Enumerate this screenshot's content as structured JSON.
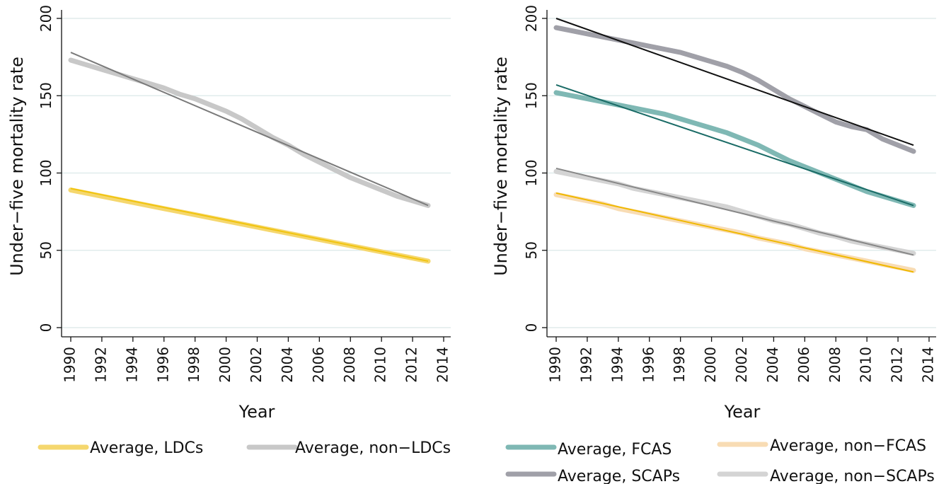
{
  "chart_data": [
    {
      "type": "line",
      "xlabel": "Year",
      "ylabel": "Under−five mortality rate",
      "xlim": [
        1990,
        2014
      ],
      "ylim": [
        0,
        200
      ],
      "xticks": [
        "1990",
        "1992",
        "1994",
        "1996",
        "1998",
        "2000",
        "2002",
        "2004",
        "2006",
        "2008",
        "2010",
        "2012",
        "2014"
      ],
      "yticks": [
        "0",
        "50",
        "100",
        "150",
        "200"
      ],
      "grid": "horizontal",
      "legend_position": "bottom",
      "x": [
        1990,
        1991,
        1992,
        1993,
        1994,
        1995,
        1996,
        1997,
        1998,
        1999,
        2000,
        2001,
        2002,
        2003,
        2004,
        2005,
        2006,
        2007,
        2008,
        2009,
        2010,
        2011,
        2012,
        2013
      ],
      "series": [
        {
          "name": "Average, LDCs",
          "color": "#f5d76e",
          "values": [
            89,
            87,
            85,
            83,
            81,
            79,
            77,
            75,
            73,
            71,
            69,
            67,
            65,
            63,
            61,
            59,
            57,
            55,
            53,
            51,
            49,
            47,
            45,
            43
          ]
        },
        {
          "name": "Average, non−LDCs",
          "color": "#c8c8c8",
          "values": [
            173,
            170,
            167,
            164,
            161,
            158,
            155,
            151,
            148,
            144,
            140,
            135,
            129,
            123,
            118,
            112,
            107,
            102,
            97,
            93,
            89,
            85,
            82,
            79
          ]
        }
      ],
      "fits": [
        {
          "color": "#f1c40f",
          "start": [
            1990,
            90
          ],
          "end": [
            2013,
            43
          ]
        },
        {
          "color": "#7a7a7a",
          "start": [
            1990,
            178
          ],
          "end": [
            2013,
            79
          ]
        }
      ]
    },
    {
      "type": "line",
      "xlabel": "Year",
      "ylabel": "Under−five mortality rate",
      "xlim": [
        1990,
        2014
      ],
      "ylim": [
        0,
        200
      ],
      "xticks": [
        "1990",
        "1992",
        "1994",
        "1996",
        "1998",
        "2000",
        "2002",
        "2004",
        "2006",
        "2008",
        "2010",
        "2012",
        "2014"
      ],
      "yticks": [
        "0",
        "50",
        "100",
        "150",
        "200"
      ],
      "grid": "horizontal",
      "legend_position": "bottom",
      "x": [
        1990,
        1991,
        1992,
        1993,
        1994,
        1995,
        1996,
        1997,
        1998,
        1999,
        2000,
        2001,
        2002,
        2003,
        2004,
        2005,
        2006,
        2007,
        2008,
        2009,
        2010,
        2011,
        2012,
        2013
      ],
      "series": [
        {
          "name": "Average, FCAS",
          "color": "#7fb8b4",
          "values": [
            152,
            150,
            148,
            146,
            144,
            142,
            140,
            138,
            135,
            132,
            129,
            126,
            122,
            118,
            113,
            108,
            104,
            100,
            96,
            92,
            88,
            85,
            82,
            79
          ]
        },
        {
          "name": "Average, non−FCAS",
          "color": "#f8dcb4",
          "values": [
            86,
            84,
            82,
            80,
            77,
            75,
            73,
            71,
            69,
            67,
            65,
            63,
            61,
            58,
            56,
            54,
            51,
            49,
            47,
            45,
            43,
            41,
            39,
            37
          ]
        },
        {
          "name": "Average, SCAPs",
          "color": "#a0a0a8",
          "values": [
            194,
            192,
            190,
            188,
            186,
            184,
            182,
            180,
            178,
            175,
            172,
            169,
            165,
            160,
            154,
            148,
            143,
            138,
            133,
            130,
            128,
            122,
            118,
            114
          ]
        },
        {
          "name": "Average, non−SCAPs",
          "color": "#d4d4d4",
          "values": [
            101,
            99,
            97,
            95,
            93,
            90,
            88,
            86,
            84,
            82,
            80,
            78,
            75,
            72,
            69,
            67,
            64,
            61,
            59,
            56,
            54,
            52,
            50,
            48
          ]
        }
      ],
      "fits": [
        {
          "color": "#1a6b66",
          "start": [
            1990,
            157
          ],
          "end": [
            2013,
            79
          ]
        },
        {
          "color": "#f0b800",
          "start": [
            1990,
            87
          ],
          "end": [
            2013,
            36
          ]
        },
        {
          "color": "#111111",
          "start": [
            1990,
            200
          ],
          "end": [
            2013,
            118
          ]
        },
        {
          "color": "#888888",
          "start": [
            1990,
            103
          ],
          "end": [
            2013,
            47
          ]
        }
      ]
    }
  ]
}
